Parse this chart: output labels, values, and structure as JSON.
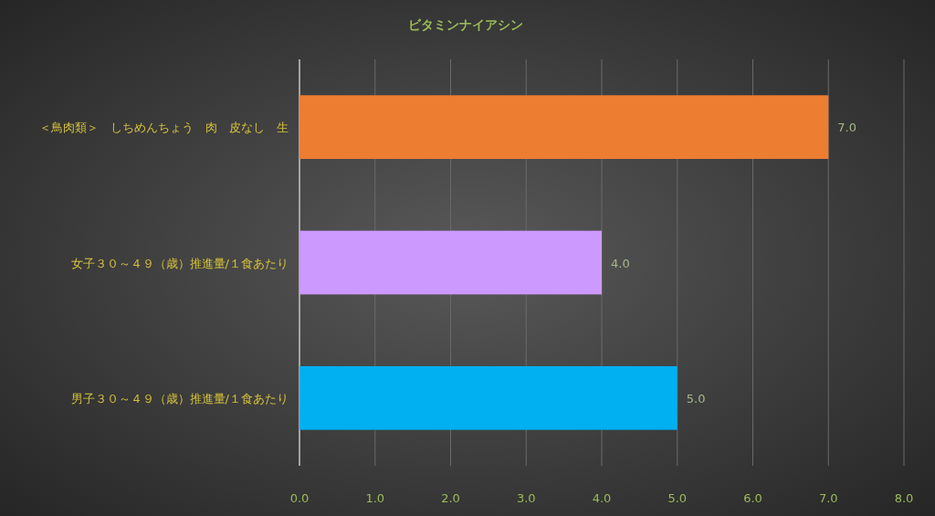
{
  "chart_data": {
    "type": "bar",
    "orientation": "horizontal",
    "title": "ビタミンナイアシン",
    "categories": [
      "＜鳥肉類＞　しちめんちょう　肉　皮なし　生",
      "女子３０～４９（歳）推進量/１食あたり",
      "男子３０～４９（歳）推進量/１食あたり"
    ],
    "values": [
      7.0,
      4.0,
      5.0
    ],
    "colors": [
      "#ed7d31",
      "#cc99ff",
      "#00b0f0"
    ],
    "value_labels": [
      "7.0",
      "4.0",
      "5.0"
    ],
    "xlim": [
      0,
      8
    ],
    "xticks": [
      {
        "value": 0,
        "label": "0.0"
      },
      {
        "value": 1,
        "label": "1.0"
      },
      {
        "value": 2,
        "label": "2.0"
      },
      {
        "value": 3,
        "label": "3.0"
      },
      {
        "value": 4,
        "label": "4.0"
      },
      {
        "value": 5,
        "label": "5.0"
      },
      {
        "value": 6,
        "label": "6.0"
      },
      {
        "value": 7,
        "label": "7.0"
      },
      {
        "value": 8,
        "label": "8.0"
      }
    ],
    "grid": "x"
  }
}
